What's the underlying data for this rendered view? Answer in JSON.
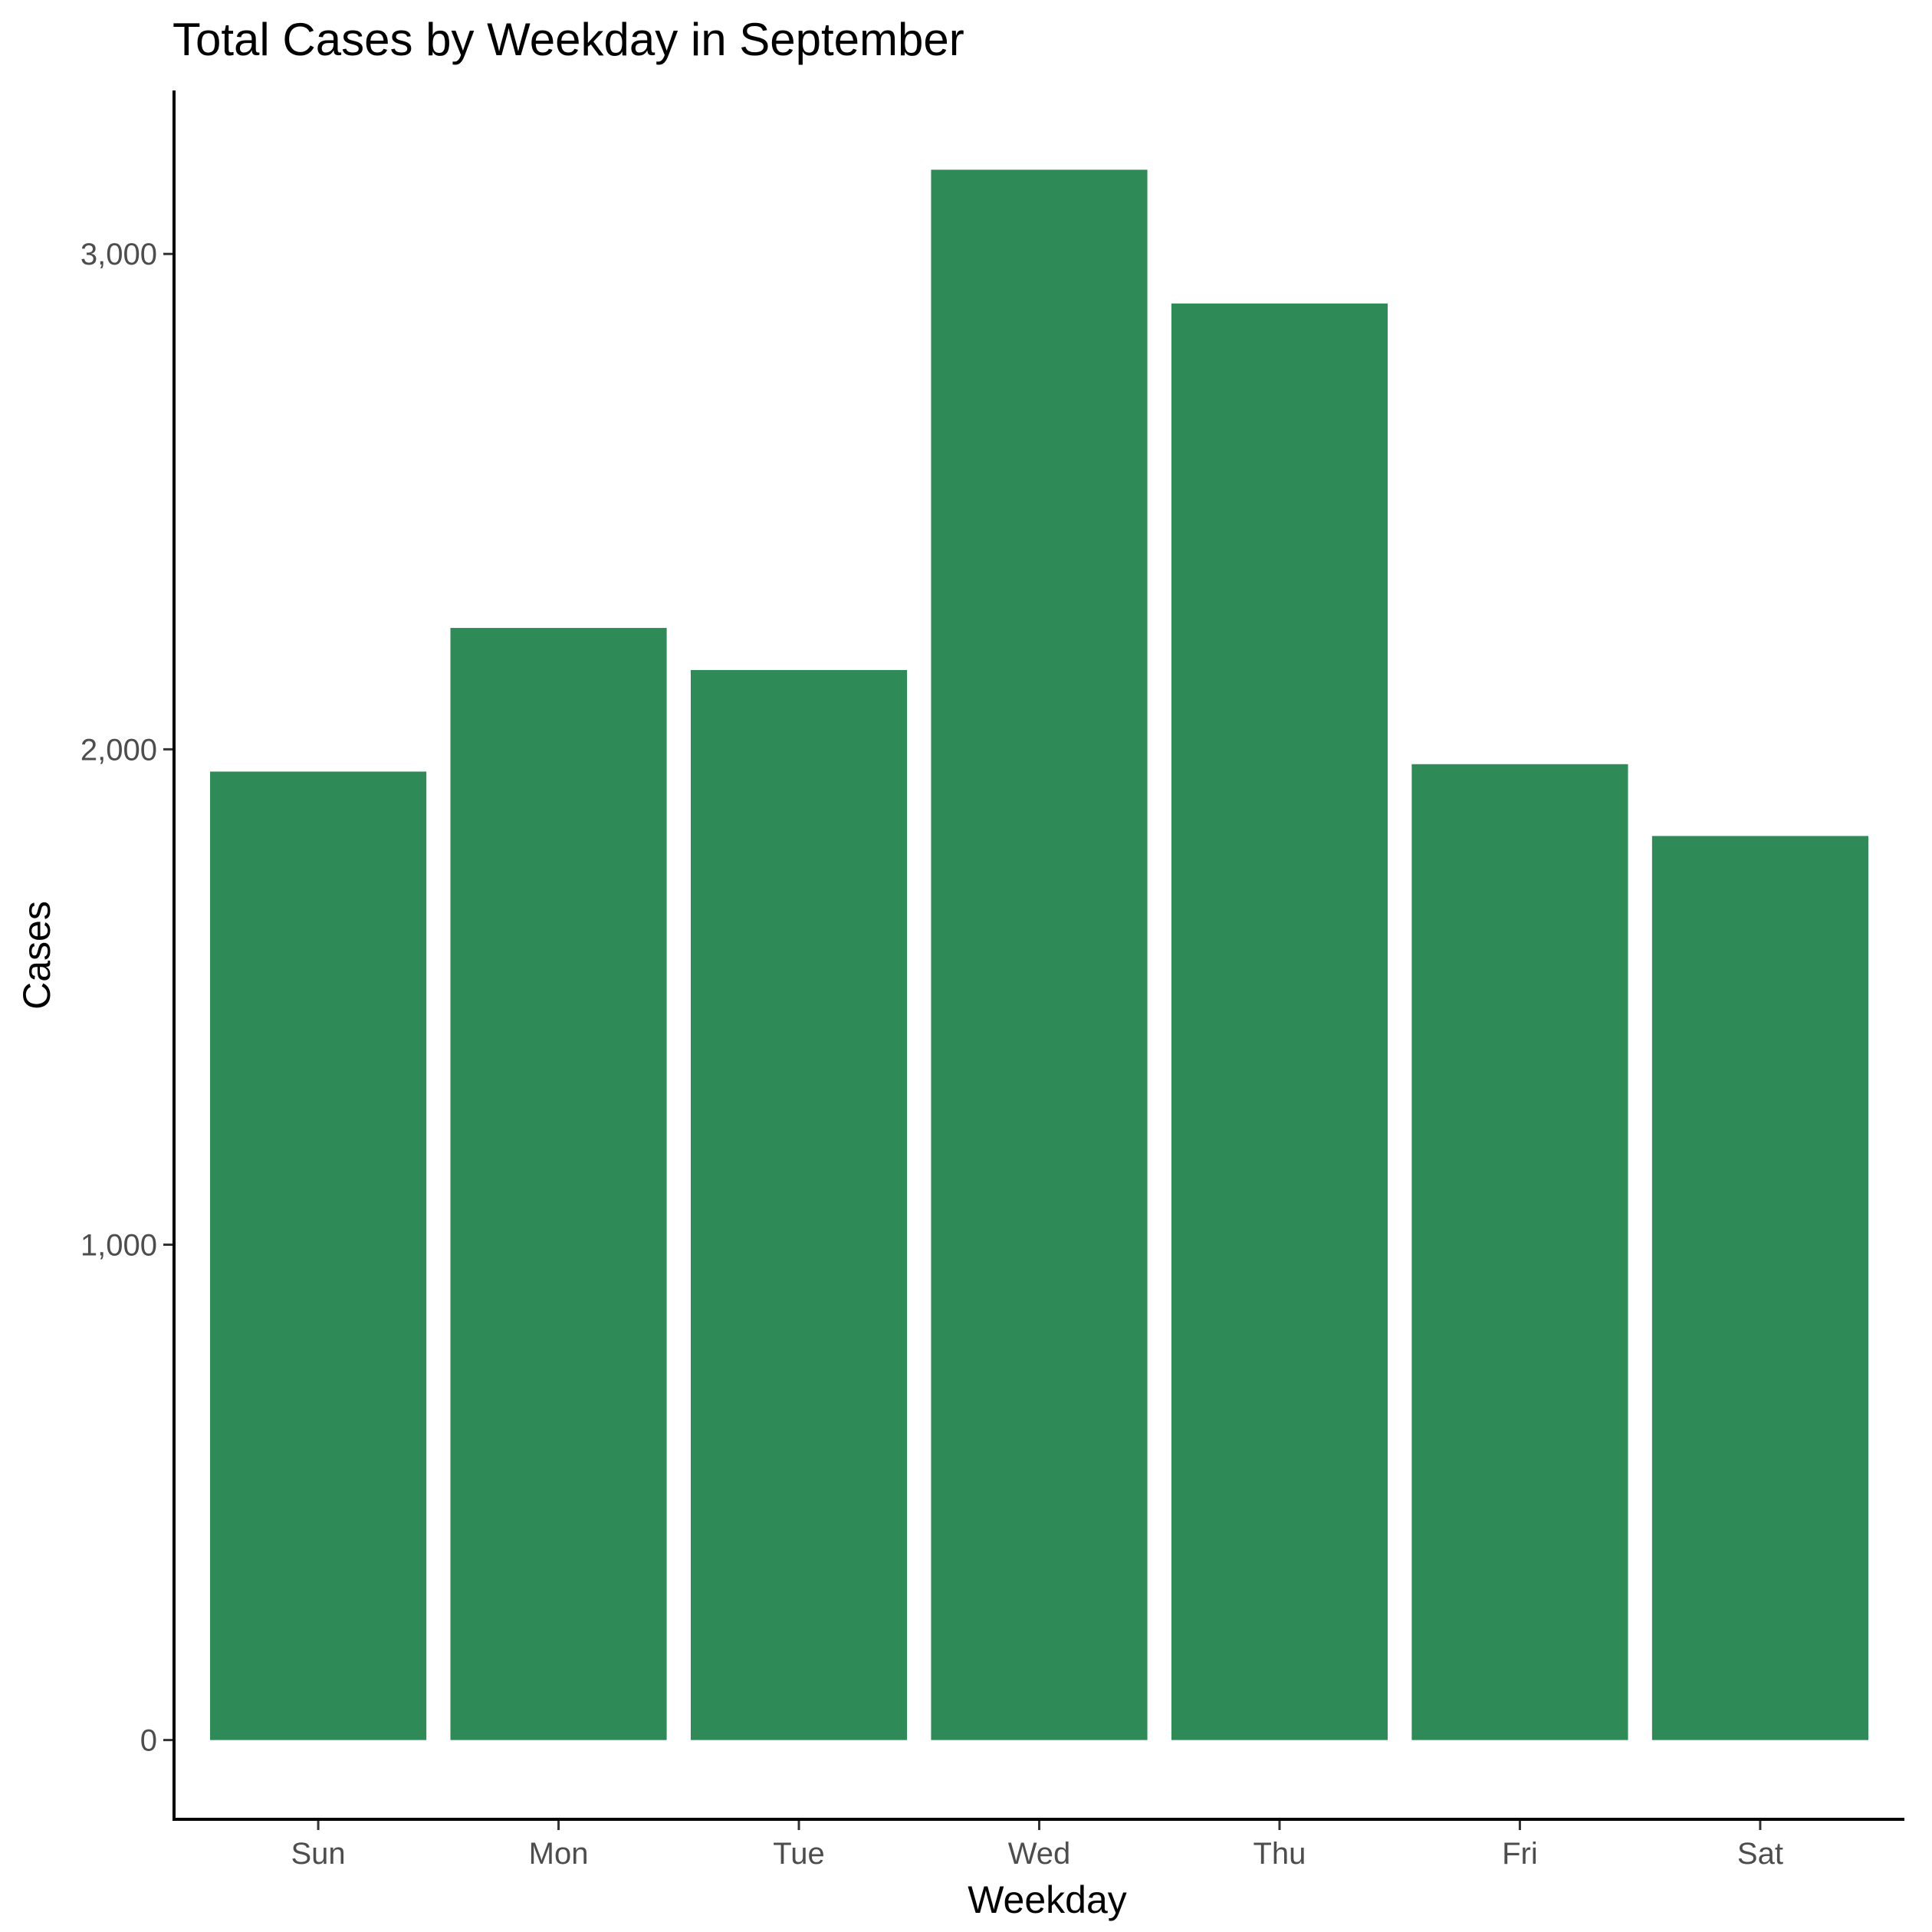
{
  "chart_data": {
    "type": "bar",
    "title": "Total Cases by Weekday in September",
    "xlabel": "Weekday",
    "ylabel": "Cases",
    "categories": [
      "Sun",
      "Mon",
      "Tue",
      "Wed",
      "Thu",
      "Fri",
      "Sat"
    ],
    "values": [
      1955,
      2245,
      2160,
      3170,
      2900,
      1970,
      1825
    ],
    "ylim": [
      -160,
      3330
    ],
    "yticks": [
      0,
      1000,
      2000,
      3000
    ],
    "ytick_labels": [
      "0",
      "1,000",
      "2,000",
      "3,000"
    ],
    "bar_color": "#2E8B57",
    "grid": false,
    "legend": "none"
  }
}
